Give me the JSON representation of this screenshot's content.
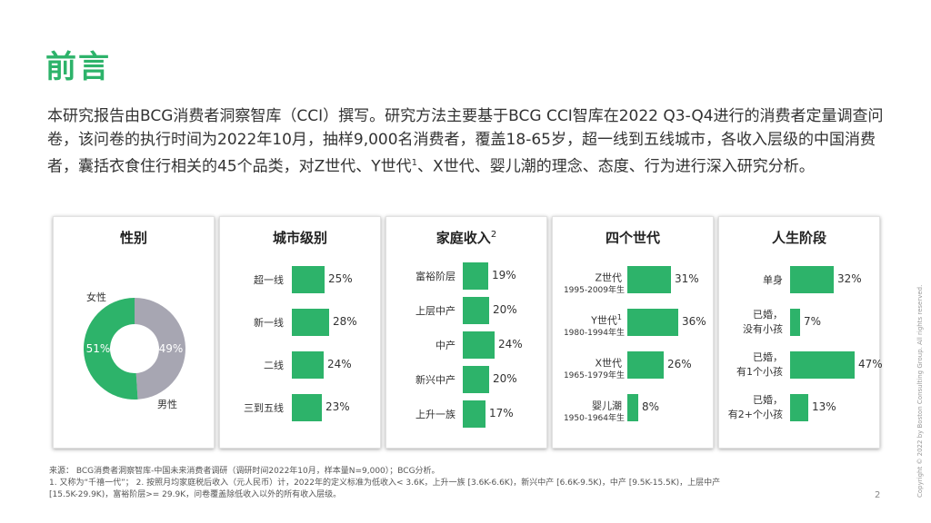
{
  "title": "前言",
  "intro": {
    "part1": "本研究报告由BCG消费者洞察智库（CCI）撰写。研究方法主要基于BCG CCI智库在2022 Q3-Q4进行的消费者定量调查问卷，该问卷的执行时间为2022年10月，抽样9,000名消费者，覆盖18-65岁，超一线到五线城市，各收入层级的中国消费者，囊括衣食住行相关的45个品类，对Z世代、Y世代",
    "sup": "1",
    "part2": "、X世代、婴儿潮的理念、态度、行为进行深入研究分析。"
  },
  "panels": {
    "gender": {
      "title": "性别",
      "female_label": "女性",
      "male_label": "男性",
      "female_pct": "51%",
      "male_pct": "49%",
      "female_value": 51,
      "male_value": 49,
      "colors": {
        "female": "#2db36a",
        "male": "#a7a6b2"
      }
    },
    "city": {
      "title": "城市级别",
      "rows": [
        {
          "label": "超一线",
          "pct": "25%",
          "value": 25
        },
        {
          "label": "新一线",
          "pct": "28%",
          "value": 28
        },
        {
          "label": "二线",
          "pct": "24%",
          "value": 24
        },
        {
          "label": "三到五线",
          "pct": "23%",
          "value": 23
        }
      ]
    },
    "income": {
      "title": "家庭收入",
      "sup": "2",
      "rows": [
        {
          "label": "富裕阶层",
          "pct": "19%",
          "value": 19
        },
        {
          "label": "上层中产",
          "pct": "20%",
          "value": 20
        },
        {
          "label": "中产",
          "pct": "24%",
          "value": 24
        },
        {
          "label": "新兴中产",
          "pct": "20%",
          "value": 20
        },
        {
          "label": "上升一族",
          "pct": "17%",
          "value": 17
        }
      ]
    },
    "generation": {
      "title": "四个世代",
      "rows": [
        {
          "label": "Z世代",
          "sup": "",
          "sub": "1995-2009年生",
          "pct": "31%",
          "value": 31
        },
        {
          "label": "Y世代",
          "sup": "1",
          "sub": "1980-1994年生",
          "pct": "36%",
          "value": 36
        },
        {
          "label": "X世代",
          "sup": "",
          "sub": "1965-1979年生",
          "pct": "26%",
          "value": 26
        },
        {
          "label": "婴儿潮",
          "sup": "",
          "sub": "1950-1964年生",
          "pct": "8%",
          "value": 8
        }
      ]
    },
    "lifestage": {
      "title": "人生阶段",
      "rows": [
        {
          "line1": "单身",
          "line2": "",
          "pct": "32%",
          "value": 32
        },
        {
          "line1": "已婚，",
          "line2": "没有小孩",
          "pct": "7%",
          "value": 7
        },
        {
          "line1": "已婚，",
          "line2": "有1个小孩",
          "pct": "47%",
          "value": 47
        },
        {
          "line1": "已婚，",
          "line2": "有2+个小孩",
          "pct": "13%",
          "value": 13
        }
      ]
    }
  },
  "footnotes": {
    "source": "来源： BCG消费者洞察智库-中国未来消费者调研（调研时间2022年10月，样本量N=9,000）；BCG分析。",
    "note1": "1. 又称为“千禧一代”； 2. 按照月均家庭税后收入（元人民币）计，2022年的定义标准为低收入< 3.6K，上升一族 [3.6K-6.6K)，新兴中产 [6.6K-9.5K)，中产 [9.5K-15.5K)，上层中产",
    "note2": "[15.5K-29.9K)，富裕阶层>= 29.9K，问卷覆盖除低收入以外的所有收入层级。"
  },
  "page_number": "2",
  "copyright": "Copyright © 2022 by Boston Consulting Group. All rights reserved.",
  "accent_color": "#2db36a"
}
